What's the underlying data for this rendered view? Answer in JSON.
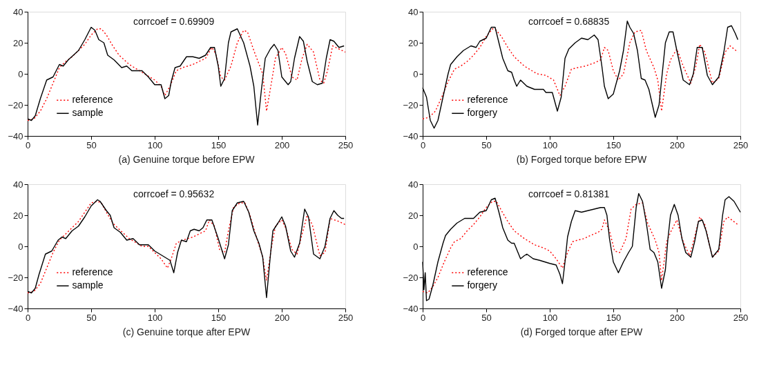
{
  "chart_data": [
    {
      "type": "line",
      "title": "(a) Genuine torque before EPW",
      "annotations": [
        "corrcoef = 0.69909"
      ],
      "xlim": [
        0,
        250
      ],
      "ylim": [
        -40,
        40
      ],
      "xticks": [
        0,
        50,
        100,
        150,
        200,
        250
      ],
      "yticks": [
        -40,
        -20,
        0,
        20,
        40
      ],
      "grid": false,
      "legend": "bottom left",
      "series": [
        {
          "name": "reference",
          "color": "#ff0000",
          "line_style": "dotted",
          "x": [
            0,
            5,
            10,
            15,
            20,
            25,
            30,
            35,
            40,
            45,
            50,
            55,
            58,
            62,
            67,
            72,
            80,
            90,
            100,
            105,
            108,
            112,
            117,
            122,
            130,
            140,
            145,
            148,
            152,
            155,
            160,
            165,
            170,
            173,
            178,
            185,
            188,
            192,
            195,
            200,
            203,
            208,
            212,
            216,
            220,
            225,
            230,
            233,
            236,
            240,
            245,
            250
          ],
          "values": [
            -30,
            -29,
            -24,
            -16,
            -6,
            4,
            8,
            11,
            15,
            19,
            25,
            29,
            29,
            25,
            18,
            12,
            6,
            1,
            -4,
            -8,
            -14,
            -8,
            2,
            4,
            6,
            10,
            17,
            13,
            -2,
            -4,
            5,
            20,
            28,
            27,
            15,
            0,
            -24,
            -5,
            10,
            17,
            13,
            -2,
            -4,
            10,
            19,
            14,
            -4,
            -6,
            2,
            18,
            16,
            14
          ]
        },
        {
          "name": "sample",
          "color": "#000000",
          "line_style": "solid",
          "x": [
            0,
            3,
            6,
            10,
            15,
            20,
            25,
            28,
            32,
            40,
            45,
            50,
            53,
            56,
            60,
            63,
            68,
            74,
            78,
            82,
            90,
            95,
            100,
            105,
            108,
            111,
            113,
            116,
            120,
            125,
            130,
            135,
            140,
            144,
            147,
            150,
            152,
            155,
            158,
            160,
            165,
            170,
            175,
            178,
            181,
            184,
            187,
            191,
            194,
            197,
            200,
            205,
            207,
            210,
            214,
            217,
            220,
            224,
            228,
            232,
            235,
            238,
            241,
            245,
            249
          ],
          "values": [
            -29,
            -30,
            -27,
            -16,
            -4,
            -2,
            6,
            5,
            9,
            15,
            22,
            30,
            28,
            22,
            20,
            12,
            9,
            4,
            5,
            2,
            2,
            -2,
            -7,
            -7,
            -16,
            -14,
            -5,
            4,
            5,
            11,
            11,
            10,
            12,
            17,
            17,
            5,
            -8,
            -3,
            20,
            27,
            29,
            20,
            5,
            -8,
            -33,
            -10,
            10,
            16,
            19,
            15,
            -2,
            -7,
            -5,
            10,
            24,
            21,
            8,
            -5,
            -7,
            -6,
            10,
            22,
            21,
            17,
            18
          ]
        }
      ]
    },
    {
      "type": "line",
      "title": "(b) Forged torque before EPW",
      "annotations": [
        "corrcoef = 0.68835"
      ],
      "xlim": [
        0,
        250
      ],
      "ylim": [
        -40,
        40
      ],
      "xticks": [
        0,
        50,
        100,
        150,
        200,
        250
      ],
      "yticks": [
        -40,
        -20,
        0,
        20,
        40
      ],
      "grid": false,
      "legend": "bottom left",
      "series": [
        {
          "name": "reference",
          "color": "#ff0000",
          "line_style": "dotted",
          "x": [
            0,
            5,
            10,
            15,
            20,
            25,
            30,
            35,
            40,
            45,
            50,
            55,
            58,
            62,
            67,
            72,
            80,
            90,
            97,
            103,
            108,
            112,
            117,
            122,
            128,
            135,
            140,
            143,
            146,
            150,
            154,
            158,
            163,
            167,
            172,
            176,
            182,
            185,
            188,
            192,
            195,
            200,
            205,
            211,
            215,
            218,
            222,
            228,
            233,
            238,
            242,
            248
          ],
          "values": [
            -29,
            -28,
            -24,
            -15,
            -5,
            3,
            5,
            8,
            12,
            17,
            24,
            29,
            28,
            24,
            17,
            11,
            5,
            0,
            -1,
            -4,
            -14,
            -8,
            3,
            4,
            5,
            7,
            9,
            17,
            15,
            2,
            -4,
            0,
            20,
            27,
            28,
            15,
            4,
            -4,
            -24,
            0,
            9,
            16,
            5,
            -6,
            5,
            19,
            14,
            -6,
            -3,
            14,
            18,
            14
          ]
        },
        {
          "name": "forgery",
          "color": "#000000",
          "line_style": "solid",
          "x": [
            0,
            3,
            6,
            9,
            12,
            16,
            20,
            22,
            27,
            32,
            38,
            42,
            45,
            50,
            54,
            57,
            60,
            63,
            67,
            70,
            72,
            74,
            77,
            82,
            88,
            95,
            97,
            102,
            106,
            109,
            112,
            115,
            120,
            125,
            130,
            135,
            138,
            141,
            143,
            146,
            150,
            155,
            158,
            161,
            163,
            166,
            169,
            172,
            175,
            178,
            183,
            186,
            188,
            191,
            194,
            197,
            200,
            205,
            210,
            213,
            216,
            220,
            224,
            228,
            233,
            237,
            240,
            243,
            246,
            248
          ],
          "values": [
            -9,
            -15,
            -30,
            -35,
            -30,
            -15,
            0,
            6,
            11,
            15,
            18,
            17,
            21,
            23,
            30,
            30,
            20,
            10,
            2,
            1,
            -4,
            -8,
            -4,
            -8,
            -10,
            -10,
            -12,
            -12,
            -24,
            -15,
            10,
            16,
            20,
            23,
            22,
            25,
            22,
            5,
            -8,
            -16,
            -13,
            2,
            15,
            34,
            30,
            26,
            15,
            -3,
            -4,
            -10,
            -28,
            -20,
            -4,
            20,
            27,
            27,
            15,
            -4,
            -7,
            0,
            17,
            17,
            -1,
            -7,
            -2,
            14,
            30,
            31,
            26,
            22
          ]
        }
      ]
    },
    {
      "type": "line",
      "title": "(c) Genuine torque after EPW",
      "annotations": [
        "corrcoef = 0.95632"
      ],
      "xlim": [
        0,
        250
      ],
      "ylim": [
        -40,
        40
      ],
      "xticks": [
        0,
        50,
        100,
        150,
        200,
        250
      ],
      "yticks": [
        -40,
        -20,
        0,
        20,
        40
      ],
      "grid": false,
      "legend": "bottom left",
      "series": [
        {
          "name": "reference",
          "color": "#ff0000",
          "line_style": "dotted",
          "x": [
            0,
            5,
            10,
            15,
            20,
            25,
            30,
            35,
            40,
            45,
            50,
            55,
            58,
            62,
            67,
            72,
            80,
            90,
            95,
            100,
            105,
            110,
            113,
            117,
            122,
            130,
            140,
            143,
            147,
            151,
            155,
            158,
            162,
            167,
            171,
            175,
            180,
            185,
            188,
            192,
            195,
            200,
            203,
            208,
            212,
            216,
            220,
            224,
            230,
            234,
            238,
            245,
            250
          ],
          "values": [
            -30,
            -29,
            -24,
            -14,
            -4,
            4,
            8,
            12,
            16,
            22,
            28,
            29,
            28,
            22,
            15,
            11,
            5,
            0,
            0,
            -4,
            -8,
            -14,
            -8,
            2,
            4,
            6,
            10,
            17,
            13,
            -2,
            -4,
            10,
            25,
            28,
            28,
            20,
            6,
            -7,
            -22,
            0,
            13,
            17,
            12,
            -2,
            -5,
            8,
            20,
            14,
            -6,
            -4,
            18,
            16,
            14
          ]
        },
        {
          "name": "sample",
          "color": "#000000",
          "line_style": "solid",
          "x": [
            0,
            3,
            6,
            9,
            14,
            19,
            24,
            27,
            30,
            35,
            40,
            45,
            50,
            55,
            57,
            62,
            65,
            68,
            73,
            78,
            83,
            88,
            95,
            100,
            106,
            112,
            115,
            118,
            121,
            125,
            128,
            131,
            135,
            138,
            141,
            145,
            150,
            155,
            158,
            161,
            165,
            170,
            174,
            178,
            182,
            185,
            188,
            191,
            193,
            197,
            200,
            203,
            207,
            210,
            214,
            218,
            221,
            225,
            230,
            234,
            238,
            241,
            244,
            247,
            249
          ],
          "values": [
            -29,
            -30,
            -27,
            -18,
            -5,
            -3,
            4,
            6,
            5,
            10,
            13,
            19,
            26,
            30,
            29,
            23,
            20,
            12,
            9,
            4,
            5,
            1,
            1,
            -3,
            -6,
            -9,
            -17,
            -4,
            4,
            3,
            10,
            11,
            10,
            12,
            17,
            17,
            5,
            -8,
            1,
            23,
            28,
            29,
            22,
            10,
            2,
            -7,
            -33,
            -6,
            10,
            15,
            19,
            13,
            -3,
            -7,
            2,
            24,
            19,
            -5,
            -8,
            0,
            18,
            23,
            20,
            18,
            18
          ]
        }
      ]
    },
    {
      "type": "line",
      "title": "(d) Forged torque after EPW",
      "annotations": [
        "corrcoef = 0.81381"
      ],
      "xlim": [
        0,
        250
      ],
      "ylim": [
        -40,
        40
      ],
      "xticks": [
        0,
        50,
        100,
        150,
        200,
        250
      ],
      "yticks": [
        -40,
        -20,
        0,
        20,
        40
      ],
      "grid": false,
      "legend": "bottom left",
      "series": [
        {
          "name": "reference",
          "color": "#ff0000",
          "line_style": "dotted",
          "x": [
            0,
            4,
            8,
            12,
            17,
            22,
            25,
            30,
            35,
            40,
            45,
            50,
            55,
            58,
            62,
            67,
            72,
            80,
            88,
            95,
            100,
            105,
            110,
            114,
            118,
            122,
            127,
            132,
            138,
            141,
            143,
            147,
            151,
            155,
            160,
            164,
            168,
            173,
            177,
            183,
            186,
            188,
            192,
            195,
            200,
            205,
            210,
            214,
            218,
            222,
            228,
            233,
            237,
            240,
            248
          ],
          "values": [
            -29,
            -30,
            -26,
            -20,
            -10,
            -1,
            3,
            5,
            10,
            14,
            19,
            25,
            29,
            29,
            23,
            16,
            10,
            5,
            1,
            -1,
            -3,
            -8,
            -14,
            -4,
            3,
            4,
            5,
            7,
            9,
            11,
            17,
            10,
            -3,
            -4,
            5,
            24,
            27,
            28,
            15,
            4,
            -4,
            -22,
            3,
            9,
            17,
            3,
            -6,
            6,
            19,
            14,
            -7,
            -3,
            16,
            19,
            14
          ]
        },
        {
          "name": "forgery",
          "color": "#000000",
          "line_style": "solid",
          "x": [
            0,
            1,
            2,
            3,
            5,
            8,
            12,
            16,
            18,
            22,
            27,
            33,
            36,
            40,
            45,
            50,
            54,
            57,
            60,
            63,
            67,
            70,
            72,
            74,
            77,
            80,
            82,
            87,
            92,
            96,
            100,
            105,
            108,
            110,
            112,
            114,
            117,
            120,
            125,
            130,
            135,
            140,
            143,
            145,
            147,
            150,
            154,
            158,
            162,
            165,
            168,
            170,
            173,
            176,
            179,
            182,
            185,
            188,
            191,
            193,
            195,
            198,
            201,
            204,
            207,
            211,
            214,
            217,
            220,
            223,
            228,
            233,
            236,
            238,
            241,
            245,
            250
          ],
          "values": [
            -10,
            -28,
            -17,
            -35,
            -34,
            -25,
            -10,
            2,
            7,
            11,
            15,
            18,
            18,
            18,
            22,
            23,
            30,
            31,
            22,
            12,
            4,
            2,
            2,
            -2,
            -8,
            -6,
            -5,
            -8,
            -9,
            -10,
            -11,
            -12,
            -18,
            -24,
            -10,
            6,
            16,
            23,
            22,
            23,
            24,
            25,
            25,
            20,
            5,
            -10,
            -17,
            -10,
            -4,
            0,
            25,
            34,
            29,
            15,
            -2,
            -4,
            -10,
            -27,
            -15,
            5,
            20,
            27,
            20,
            5,
            -4,
            -7,
            3,
            16,
            17,
            10,
            -7,
            -2,
            20,
            30,
            32,
            29,
            22
          ]
        }
      ]
    }
  ]
}
